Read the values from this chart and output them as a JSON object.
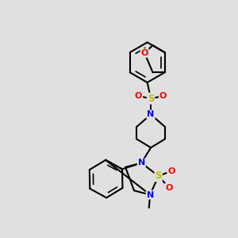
{
  "background_color": "#e0e0e0",
  "line_color": "#000000",
  "bond_width": 1.5,
  "fig_width": 3.0,
  "fig_height": 3.0,
  "dpi": 100,
  "colors": {
    "N": "#0000ee",
    "O": "#ff0000",
    "S": "#bbbb00",
    "C": "#000000"
  }
}
